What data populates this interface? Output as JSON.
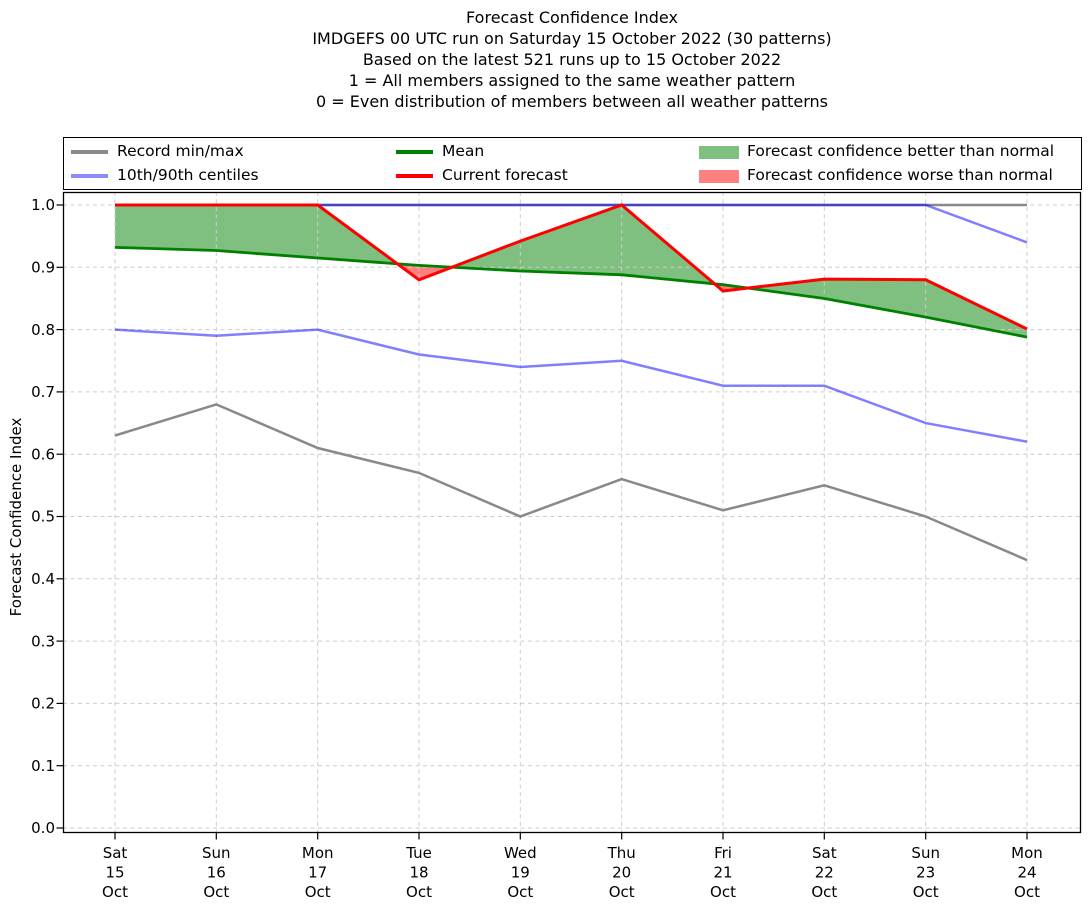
{
  "title": {
    "lines": [
      "Forecast Confidence Index",
      "IMDGEFS 00 UTC run on Saturday 15 October 2022 (30 patterns)",
      "Based on the latest 521 runs up to 15 October 2022",
      "1 = All members assigned to the same weather pattern",
      "0 = Even distribution of members between all weather patterns"
    ]
  },
  "legend": {
    "items": [
      {
        "label": "Record min/max",
        "type": "line",
        "color": "#898989",
        "col": 0
      },
      {
        "label": "10th/90th centiles",
        "type": "line",
        "color": "#8c8cf8",
        "col": 0
      },
      {
        "label": "Mean",
        "type": "line",
        "color": "#008000",
        "col": 1
      },
      {
        "label": "Current forecast",
        "type": "line",
        "color": "#ff0000",
        "col": 1
      },
      {
        "label": "Forecast confidence better than normal",
        "type": "patch",
        "color": "#7fbf7f",
        "col": 2
      },
      {
        "label": "Forecast confidence worse than normal",
        "type": "patch",
        "color": "#ff8080",
        "col": 2
      }
    ]
  },
  "chart_data": {
    "type": "line",
    "title": "Forecast Confidence Index",
    "xlabel": "",
    "ylabel": "Forecast Confidence Index",
    "ylim": [
      0.0,
      1.0
    ],
    "yticks": [
      0.0,
      0.1,
      0.2,
      0.3,
      0.4,
      0.5,
      0.6,
      0.7,
      0.8,
      0.9,
      1.0
    ],
    "grid": true,
    "legend_position": "top",
    "categories": [
      [
        "Sat",
        "15",
        "Oct"
      ],
      [
        "Sun",
        "16",
        "Oct"
      ],
      [
        "Mon",
        "17",
        "Oct"
      ],
      [
        "Tue",
        "18",
        "Oct"
      ],
      [
        "Wed",
        "19",
        "Oct"
      ],
      [
        "Thu",
        "20",
        "Oct"
      ],
      [
        "Fri",
        "21",
        "Oct"
      ],
      [
        "Sat",
        "22",
        "Oct"
      ],
      [
        "Sun",
        "23",
        "Oct"
      ],
      [
        "Mon",
        "24",
        "Oct"
      ]
    ],
    "series": [
      {
        "name": "Record max",
        "color": "#898989",
        "width": 2.5,
        "opacity": 1,
        "values": [
          1.0,
          1.0,
          1.0,
          1.0,
          1.0,
          1.0,
          1.0,
          1.0,
          1.0,
          1.0
        ]
      },
      {
        "name": "Record min",
        "color": "#898989",
        "width": 2.5,
        "opacity": 1,
        "values": [
          0.63,
          0.68,
          0.61,
          0.57,
          0.5,
          0.56,
          0.51,
          0.55,
          0.5,
          0.43
        ]
      },
      {
        "name": "90th centile",
        "color": "#0000ff",
        "width": 2.5,
        "opacity": 0.5,
        "values": [
          1.0,
          1.0,
          1.0,
          1.0,
          1.0,
          1.0,
          1.0,
          1.0,
          1.0,
          0.94
        ]
      },
      {
        "name": "10th centile",
        "color": "#0000ff",
        "width": 2.5,
        "opacity": 0.5,
        "values": [
          0.8,
          0.79,
          0.8,
          0.76,
          0.74,
          0.75,
          0.71,
          0.71,
          0.65,
          0.62
        ]
      },
      {
        "name": "Mean",
        "color": "#008000",
        "width": 2.8,
        "opacity": 1,
        "values": [
          0.932,
          0.927,
          0.915,
          0.903,
          0.894,
          0.888,
          0.872,
          0.85,
          0.82,
          0.788
        ]
      },
      {
        "name": "Current forecast",
        "color": "#ff0000",
        "width": 3.0,
        "opacity": 1,
        "values": [
          1.0,
          1.0,
          1.0,
          0.88,
          0.942,
          1.0,
          0.862,
          0.881,
          0.88,
          0.801
        ]
      }
    ],
    "fills": {
      "between": [
        "Mean",
        "Current forecast"
      ],
      "better_color": "rgba(0,128,0,0.5)",
      "worse_color": "rgba(255,0,0,0.5)"
    }
  }
}
